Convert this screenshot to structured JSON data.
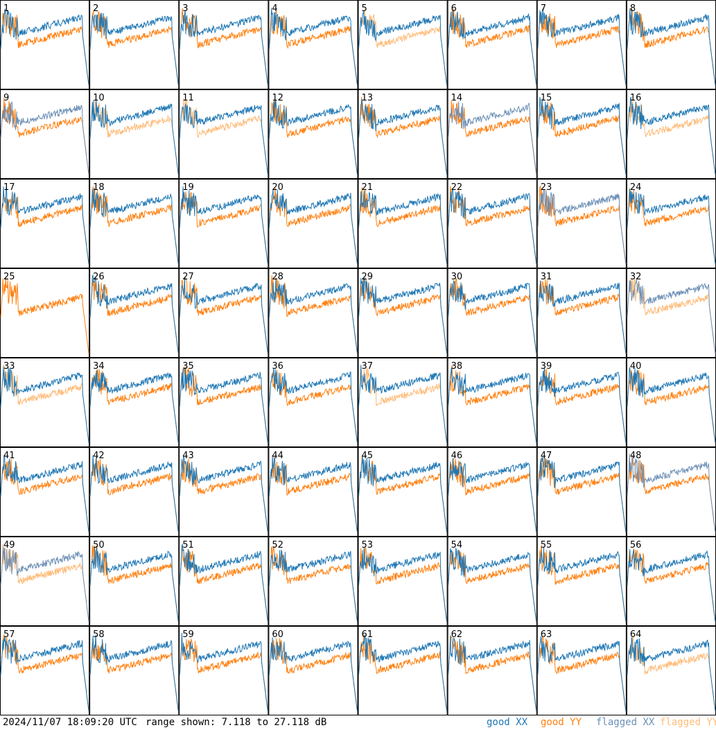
{
  "footer": {
    "timestamp": "2024/11/07 18:09:20 UTC",
    "range_text": "range shown: 7.118 to 27.118 dB",
    "legend": [
      {
        "label": "good XX",
        "color": "#1f77b4"
      },
      {
        "label": "good YY",
        "color": "#ff7f0e"
      },
      {
        "label": "flagged XX",
        "color": "#6b8fb5"
      },
      {
        "label": "flagged YY",
        "color": "#ffbb78"
      }
    ]
  },
  "chart_data": {
    "type": "line",
    "layout": "small-multiples 8x8",
    "y_range_db": [
      7.118,
      27.118
    ],
    "series_colors": {
      "good_xx": "#1f77b4",
      "good_yy": "#ff7f0e",
      "flagged_xx": "#6b8fb5",
      "flagged_yy": "#ffbb78"
    },
    "panels": [
      {
        "id": "1",
        "xx": "good",
        "yy": "good"
      },
      {
        "id": "2",
        "xx": "good",
        "yy": "good"
      },
      {
        "id": "3",
        "xx": "good",
        "yy": "good"
      },
      {
        "id": "4",
        "xx": "good",
        "yy": "good"
      },
      {
        "id": "5",
        "xx": "good",
        "yy": "flagged"
      },
      {
        "id": "6",
        "xx": "good",
        "yy": "good"
      },
      {
        "id": "7",
        "xx": "good",
        "yy": "good"
      },
      {
        "id": "8",
        "xx": "good",
        "yy": "good"
      },
      {
        "id": "9",
        "xx": "flagged",
        "yy": "good"
      },
      {
        "id": "10",
        "xx": "good",
        "yy": "flagged"
      },
      {
        "id": "11",
        "xx": "good",
        "yy": "flagged"
      },
      {
        "id": "12",
        "xx": "good",
        "yy": "good"
      },
      {
        "id": "13",
        "xx": "good",
        "yy": "good"
      },
      {
        "id": "14",
        "xx": "flagged",
        "yy": "good"
      },
      {
        "id": "15",
        "xx": "good",
        "yy": "good"
      },
      {
        "id": "16",
        "xx": "good",
        "yy": "flagged"
      },
      {
        "id": "17",
        "xx": "good",
        "yy": "good"
      },
      {
        "id": "18",
        "xx": "good",
        "yy": "good"
      },
      {
        "id": "19",
        "xx": "good",
        "yy": "good"
      },
      {
        "id": "20",
        "xx": "good",
        "yy": "good"
      },
      {
        "id": "21",
        "xx": "good",
        "yy": "good"
      },
      {
        "id": "22",
        "xx": "good",
        "yy": "good"
      },
      {
        "id": "23",
        "xx": "flagged",
        "yy": "good"
      },
      {
        "id": "24",
        "xx": "good",
        "yy": "good"
      },
      {
        "id": "25",
        "xx": "none",
        "yy": "good"
      },
      {
        "id": "26",
        "xx": "good",
        "yy": "good"
      },
      {
        "id": "27",
        "xx": "good",
        "yy": "good"
      },
      {
        "id": "28",
        "xx": "good",
        "yy": "good"
      },
      {
        "id": "29",
        "xx": "good",
        "yy": "good"
      },
      {
        "id": "30",
        "xx": "good",
        "yy": "good"
      },
      {
        "id": "31",
        "xx": "good",
        "yy": "good"
      },
      {
        "id": "32",
        "xx": "flagged",
        "yy": "flagged"
      },
      {
        "id": "33",
        "xx": "good",
        "yy": "flagged"
      },
      {
        "id": "34",
        "xx": "good",
        "yy": "good"
      },
      {
        "id": "35",
        "xx": "good",
        "yy": "good"
      },
      {
        "id": "36",
        "xx": "good",
        "yy": "good"
      },
      {
        "id": "37",
        "xx": "good",
        "yy": "flagged"
      },
      {
        "id": "38",
        "xx": "good",
        "yy": "good"
      },
      {
        "id": "39",
        "xx": "good",
        "yy": "good"
      },
      {
        "id": "40",
        "xx": "good",
        "yy": "good"
      },
      {
        "id": "41",
        "xx": "good",
        "yy": "good"
      },
      {
        "id": "42",
        "xx": "good",
        "yy": "good"
      },
      {
        "id": "43",
        "xx": "good",
        "yy": "good"
      },
      {
        "id": "44",
        "xx": "good",
        "yy": "good"
      },
      {
        "id": "45",
        "xx": "good",
        "yy": "good"
      },
      {
        "id": "46",
        "xx": "good",
        "yy": "good"
      },
      {
        "id": "47",
        "xx": "good",
        "yy": "good"
      },
      {
        "id": "48",
        "xx": "flagged",
        "yy": "good"
      },
      {
        "id": "49",
        "xx": "flagged",
        "yy": "flagged"
      },
      {
        "id": "50",
        "xx": "good",
        "yy": "good"
      },
      {
        "id": "51",
        "xx": "good",
        "yy": "good"
      },
      {
        "id": "52",
        "xx": "good",
        "yy": "good"
      },
      {
        "id": "53",
        "xx": "good",
        "yy": "good"
      },
      {
        "id": "54",
        "xx": "good",
        "yy": "good"
      },
      {
        "id": "55",
        "xx": "good",
        "yy": "good"
      },
      {
        "id": "56",
        "xx": "good",
        "yy": "good"
      },
      {
        "id": "57",
        "xx": "good",
        "yy": "good"
      },
      {
        "id": "58",
        "xx": "good",
        "yy": "good"
      },
      {
        "id": "59",
        "xx": "good",
        "yy": "good"
      },
      {
        "id": "60",
        "xx": "good",
        "yy": "good"
      },
      {
        "id": "61",
        "xx": "good",
        "yy": "good"
      },
      {
        "id": "62",
        "xx": "good",
        "yy": "good"
      },
      {
        "id": "63",
        "xx": "good",
        "yy": "good"
      },
      {
        "id": "64",
        "xx": "good",
        "yy": "flagged"
      }
    ]
  }
}
